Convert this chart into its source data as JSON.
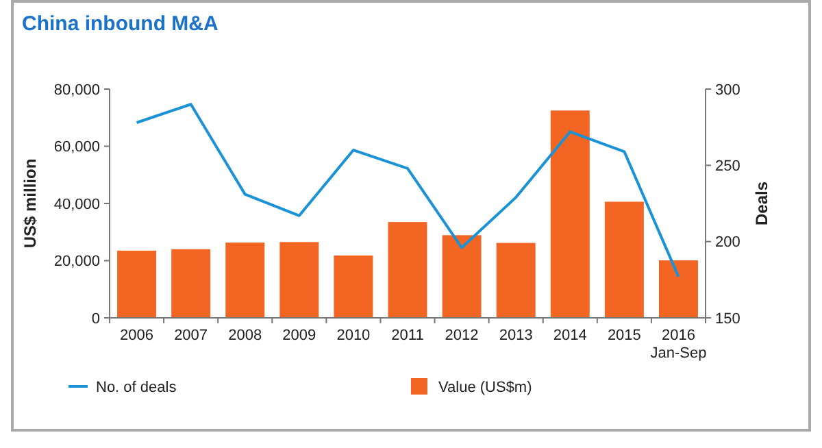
{
  "chart_data": {
    "type": "bar",
    "title": "China inbound M&A",
    "ylabel": "US$ million",
    "y2label": "Deals",
    "categories": [
      "2006",
      "2007",
      "2008",
      "2009",
      "2010",
      "2011",
      "2012",
      "2013",
      "2014",
      "2015",
      "2016\nJan-Sep"
    ],
    "series": [
      {
        "name": "No. of deals",
        "type": "line",
        "axis": "y2",
        "color": "#1a92d6",
        "values": [
          278,
          290,
          231,
          217,
          260,
          248,
          196,
          229,
          272,
          259,
          177
        ]
      },
      {
        "name": "Value (US$m)",
        "color": "#f26522",
        "values": [
          23500,
          24000,
          26300,
          26500,
          21800,
          33500,
          28900,
          26200,
          72500,
          40600,
          20100
        ]
      }
    ],
    "ylim": [
      0,
      80000
    ],
    "yticks": [
      {
        "value": 0,
        "label": "0"
      },
      {
        "value": 20000,
        "label": "20,000"
      },
      {
        "value": 40000,
        "label": "40,000"
      },
      {
        "value": 60000,
        "label": "60,000"
      },
      {
        "value": 80000,
        "label": "80,000"
      }
    ],
    "y2lim": [
      150,
      300
    ],
    "y2ticks": [
      150,
      200,
      250,
      300
    ],
    "grid": false,
    "legend": "bottom",
    "marker": "none",
    "line_style": "solid"
  }
}
